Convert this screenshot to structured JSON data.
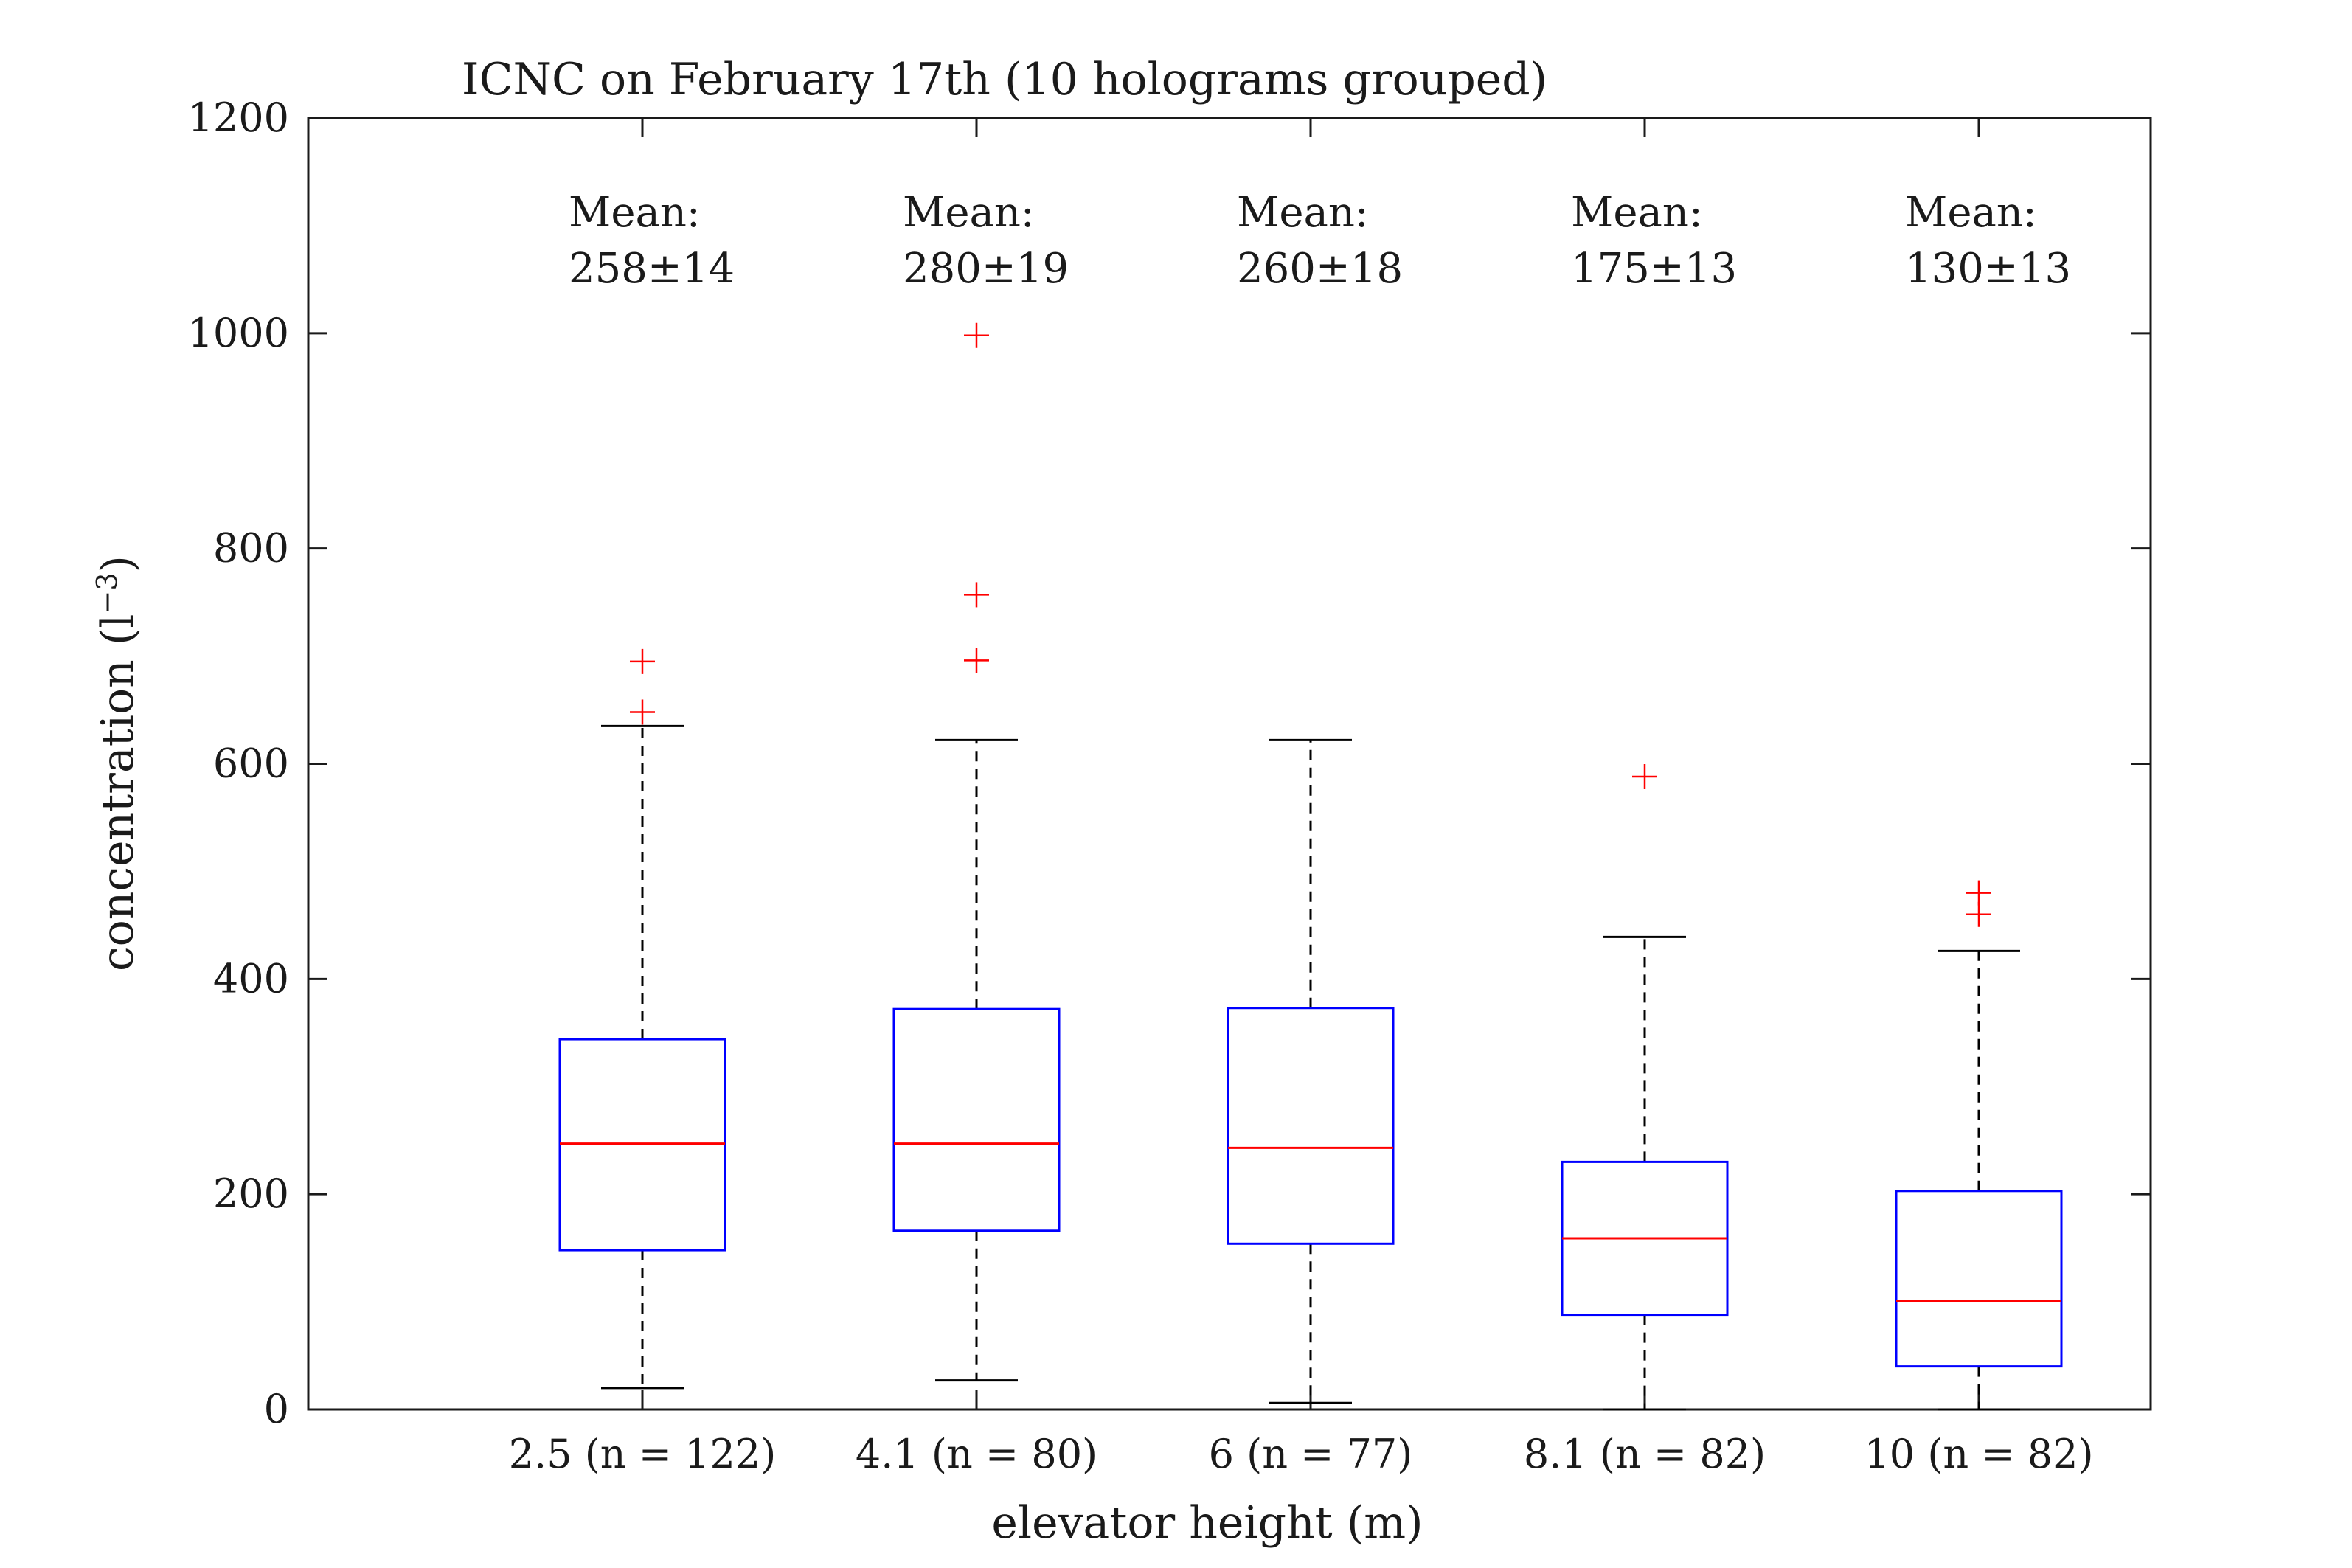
{
  "chart_data": {
    "type": "box",
    "title": "ICNC on February 17th (10 holograms grouped)",
    "xlabel": "elevator height (m)",
    "ylabel_main": "concentration (l",
    "ylabel_sup": "−3",
    "ylabel_end": ")",
    "ylim": [
      0,
      1200
    ],
    "yticks": [
      "0",
      "200",
      "400",
      "600",
      "800",
      "1000",
      "1200"
    ],
    "ytick_values": [
      0,
      200,
      400,
      600,
      800,
      1000,
      1200
    ],
    "grid": false,
    "colors": {
      "box": "#0000ff",
      "median": "#ff0000",
      "whisker": "#000000",
      "outlier": "#ff0000"
    },
    "mean_label": "Mean:",
    "groups": [
      {
        "label": "2.5 (n = 122)",
        "whisker_low": 20,
        "q1": 148,
        "median": 247,
        "q3": 344,
        "whisker_high": 635,
        "outliers": [
          695,
          648
        ],
        "mean": "258±14"
      },
      {
        "label": "4.1 (n = 80)",
        "whisker_low": 27,
        "q1": 166,
        "median": 247,
        "q3": 372,
        "whisker_high": 622,
        "outliers": [
          998,
          757,
          696
        ],
        "mean": "280±19"
      },
      {
        "label": "6 (n = 77)",
        "whisker_low": 6,
        "q1": 154,
        "median": 243,
        "q3": 373,
        "whisker_high": 622,
        "outliers": [],
        "mean": "260±18"
      },
      {
        "label": "8.1 (n = 82)",
        "whisker_low": 0,
        "q1": 88,
        "median": 159,
        "q3": 230,
        "whisker_high": 439,
        "outliers": [
          588
        ],
        "mean": "175±13"
      },
      {
        "label": "10 (n = 82)",
        "whisker_low": 0,
        "q1": 40,
        "median": 101,
        "q3": 203,
        "whisker_high": 426,
        "outliers": [
          480,
          460
        ],
        "mean": "130±13"
      }
    ]
  }
}
